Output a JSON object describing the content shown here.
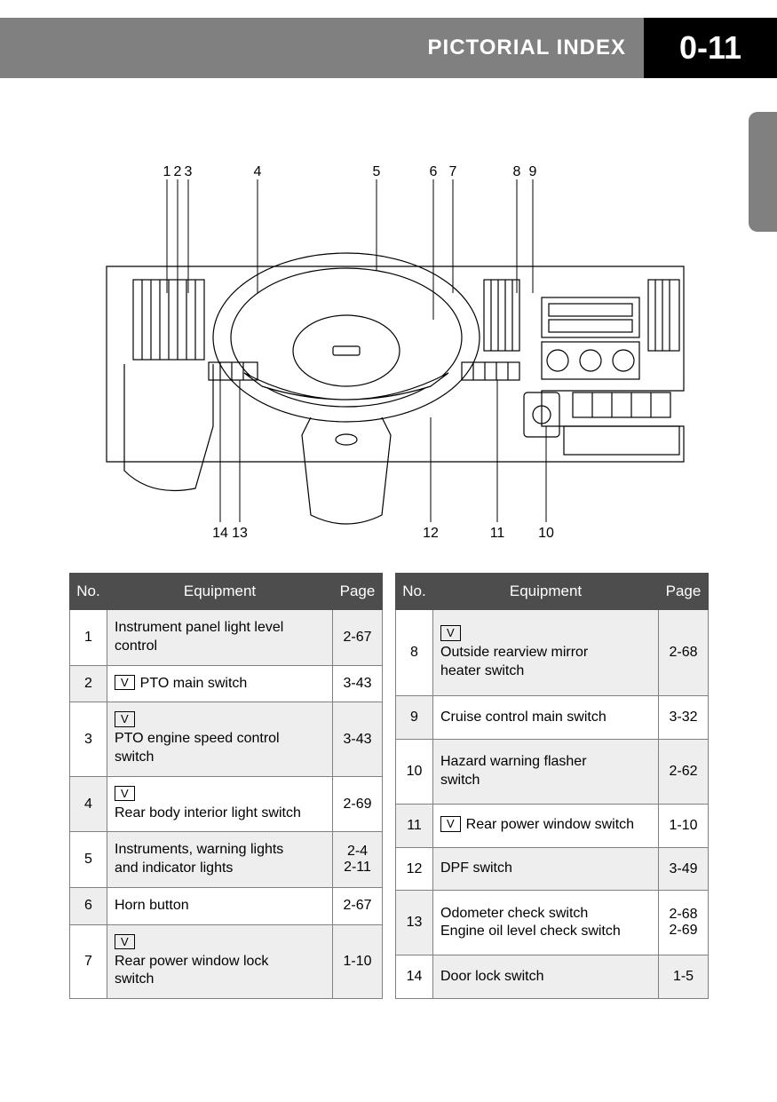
{
  "header": {
    "title": "PICTORIAL INDEX",
    "page_number": "0-11"
  },
  "diagram": {
    "top_labels": [
      "1",
      "2",
      "3",
      "4",
      "5",
      "6",
      "7",
      "8",
      "9"
    ],
    "top_x": [
      98,
      110,
      122,
      200,
      334,
      398,
      420,
      492,
      510
    ],
    "bottom_labels": [
      "14",
      "13",
      "12",
      "11",
      "10"
    ],
    "bottom_x": [
      158,
      180,
      395,
      470,
      525
    ]
  },
  "table_headers": {
    "no": "No.",
    "equipment": "Equipment",
    "page": "Page"
  },
  "v_label": "V",
  "left_rows": [
    {
      "no": "1",
      "v": false,
      "equipment": "Instrument panel light level control",
      "page": "2-67"
    },
    {
      "no": "2",
      "v": true,
      "equipment": "PTO main switch",
      "page": "3-43"
    },
    {
      "no": "3",
      "v": true,
      "equipment": "PTO engine speed control switch",
      "page": "3-43"
    },
    {
      "no": "4",
      "v": true,
      "equipment": "Rear body interior light switch",
      "page": "2-69"
    },
    {
      "no": "5",
      "v": false,
      "equipment": "Instruments, warning lights and indicator lights",
      "page": "2-4\n2-11"
    },
    {
      "no": "6",
      "v": false,
      "equipment": "Horn button",
      "page": "2-67"
    },
    {
      "no": "7",
      "v": true,
      "equipment": "Rear power window lock switch",
      "page": "1-10"
    }
  ],
  "right_rows": [
    {
      "no": "8",
      "v": true,
      "equipment": "Outside rearview mirror heater switch",
      "page": "2-68"
    },
    {
      "no": "9",
      "v": false,
      "equipment": "Cruise control main switch",
      "page": "3-32"
    },
    {
      "no": "10",
      "v": false,
      "equipment": "Hazard warning flasher switch",
      "page": "2-62"
    },
    {
      "no": "11",
      "v": true,
      "equipment": "Rear power window switch",
      "page": "1-10"
    },
    {
      "no": "12",
      "v": false,
      "equipment": "DPF switch",
      "page": "3-49"
    },
    {
      "no": "13",
      "v": false,
      "equipment": "Odometer check switch\nEngine oil level check switch",
      "page": "2-68\n2-69"
    },
    {
      "no": "14",
      "v": false,
      "equipment": "Door lock switch",
      "page": "1-5"
    }
  ]
}
